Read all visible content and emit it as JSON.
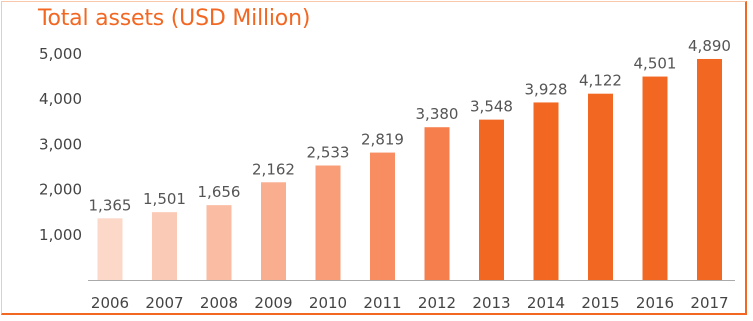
{
  "chart_data": {
    "type": "bar",
    "title": "Total assets (USD Million)",
    "xlabel": "",
    "ylabel": "",
    "categories": [
      "2006",
      "2007",
      "2008",
      "2009",
      "2010",
      "2011",
      "2012",
      "2013",
      "2014",
      "2015",
      "2016",
      "2017"
    ],
    "values": [
      1365,
      1501,
      1656,
      2162,
      2533,
      2819,
      3380,
      3548,
      3928,
      4122,
      4501,
      4890
    ],
    "value_labels": [
      "1,365",
      "1,501",
      "1,656",
      "2,162",
      "2,533",
      "2,819",
      "3,380",
      "3,548",
      "3,928",
      "4,122",
      "4,501",
      "4,890"
    ],
    "yticks": [
      1000,
      2000,
      3000,
      4000,
      5000
    ],
    "ytick_labels": [
      "1,000",
      "2,000",
      "3,000",
      "4,000",
      "5,000"
    ],
    "ylim": [
      0,
      5000
    ],
    "grid": false,
    "legend": "none",
    "colors": [
      "#fcd8c9",
      "#fbcab6",
      "#fabca2",
      "#f9ae8f",
      "#f89d77",
      "#f78d60",
      "#f67e4c",
      "#f26722",
      "#f26722",
      "#f26722",
      "#f26722",
      "#f26722"
    ],
    "axis_color": "#aaaaaa",
    "title_color": "#f26722"
  }
}
